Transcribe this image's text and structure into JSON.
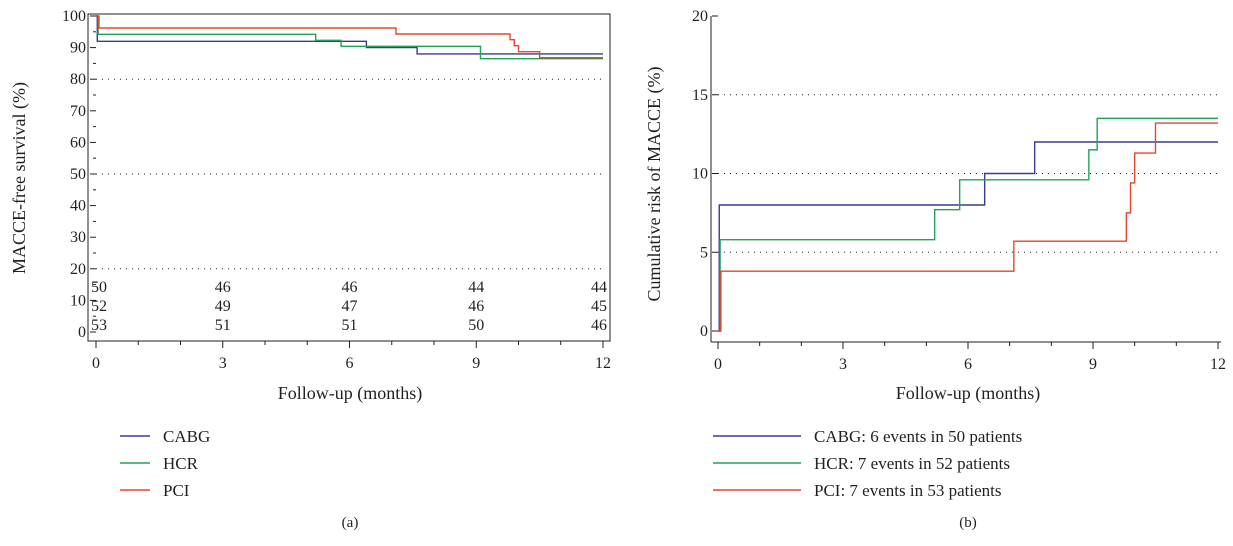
{
  "chart_data": [
    {
      "type": "line",
      "step": true,
      "panel_label": "(a)",
      "xlabel": "Follow-up (months)",
      "ylabel": "MACCE-free survival (%)",
      "xlim": [
        0,
        12
      ],
      "ylim": [
        0,
        100
      ],
      "xticks": [
        "0",
        "3",
        "6",
        "9",
        "12"
      ],
      "yticks": [
        "0",
        "10",
        "20",
        "30",
        "40",
        "50",
        "60",
        "70",
        "80",
        "90",
        "100"
      ],
      "grid": "dotted horizontal at 20, 50, 80",
      "legend_position": "below",
      "series": [
        {
          "name": "CABG",
          "color": "#3b3c8f",
          "x": [
            0,
            0.03,
            6.4,
            7.6,
            12
          ],
          "y": [
            100,
            92,
            90,
            88,
            88
          ]
        },
        {
          "name": "HCR",
          "color": "#21a35a",
          "x": [
            0,
            0.05,
            5.2,
            5.8,
            9.1,
            12
          ],
          "y": [
            100,
            94.2,
            92.3,
            90.4,
            86.5,
            86.5
          ]
        },
        {
          "name": "PCI",
          "color": "#e8452c",
          "x": [
            0,
            0.07,
            7.1,
            9.8,
            9.9,
            10,
            10.5,
            12
          ],
          "y": [
            100,
            96.2,
            94.3,
            92.5,
            90.6,
            88.7,
            86.8,
            86.8
          ]
        }
      ],
      "at_risk": {
        "timepoints": [
          "0",
          "3",
          "6",
          "9",
          "12"
        ],
        "rows": [
          {
            "group": "CABG",
            "counts": [
              "50",
              "46",
              "46",
              "44",
              "44"
            ]
          },
          {
            "group": "HCR",
            "counts": [
              "52",
              "49",
              "47",
              "46",
              "45"
            ]
          },
          {
            "group": "PCI",
            "counts": [
              "53",
              "51",
              "51",
              "50",
              "46"
            ]
          }
        ]
      }
    },
    {
      "type": "line",
      "step": true,
      "panel_label": "(b)",
      "xlabel": "Follow-up (months)",
      "ylabel": "Cumulative risk of MACCE (%)",
      "xlim": [
        0,
        12
      ],
      "ylim": [
        0,
        20
      ],
      "xticks": [
        "0",
        "3",
        "6",
        "9",
        "12"
      ],
      "yticks": [
        "0",
        "5",
        "10",
        "15",
        "20"
      ],
      "grid": "dotted horizontal at 5, 10, 15",
      "legend_position": "below",
      "series": [
        {
          "name": "CABG: 6 events in 50 patients",
          "color": "#3b3c8f",
          "x": [
            0,
            0.03,
            6.4,
            7.6,
            12
          ],
          "y": [
            0,
            8,
            10,
            12,
            12
          ]
        },
        {
          "name": "HCR: 7 events in 52 patients",
          "color": "#21a35a",
          "x": [
            0,
            0.05,
            5.2,
            5.8,
            8.9,
            9.1,
            12
          ],
          "y": [
            0,
            5.8,
            7.7,
            9.6,
            11.5,
            13.5,
            13.5
          ]
        },
        {
          "name": "PCI: 7 events in 53 patients",
          "color": "#e8452c",
          "x": [
            0,
            0.07,
            7.1,
            9.8,
            9.9,
            10,
            10.5,
            12
          ],
          "y": [
            0,
            3.8,
            5.7,
            7.5,
            9.4,
            11.3,
            13.2,
            13.2
          ]
        }
      ]
    }
  ]
}
